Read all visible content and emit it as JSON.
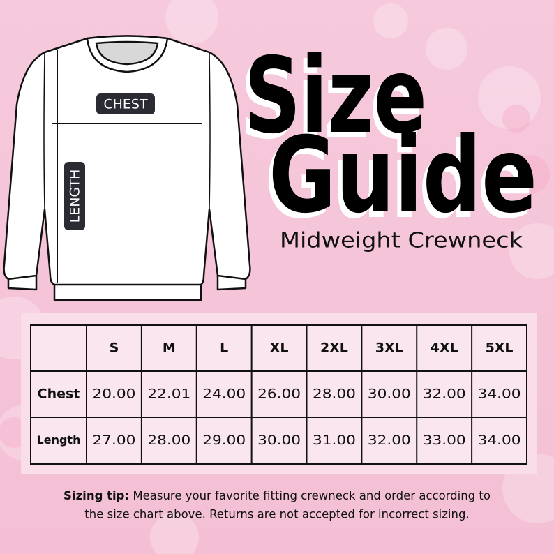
{
  "header": {
    "title_line1": "Size",
    "title_line2": "Guide",
    "subtitle": "Midweight Crewneck"
  },
  "diagram": {
    "chest_label": "CHEST",
    "length_label": "LENGTH"
  },
  "table": {
    "columns": [
      "S",
      "M",
      "L",
      "XL",
      "2XL",
      "3XL",
      "4XL",
      "5XL"
    ],
    "rows": [
      {
        "label": "Chest",
        "cells": [
          "20.00",
          "22.01",
          "24.00",
          "26.00",
          "28.00",
          "30.00",
          "32.00",
          "34.00"
        ]
      },
      {
        "label": "Length",
        "cells": [
          "27.00",
          "28.00",
          "29.00",
          "30.00",
          "31.00",
          "32.00",
          "33.00",
          "34.00"
        ]
      }
    ]
  },
  "tip": {
    "lead": "Sizing tip:",
    "line1": "Measure your favorite fitting crewneck and order according to",
    "line2": "the size chart above. Returns are not accepted for incorrect sizing."
  }
}
